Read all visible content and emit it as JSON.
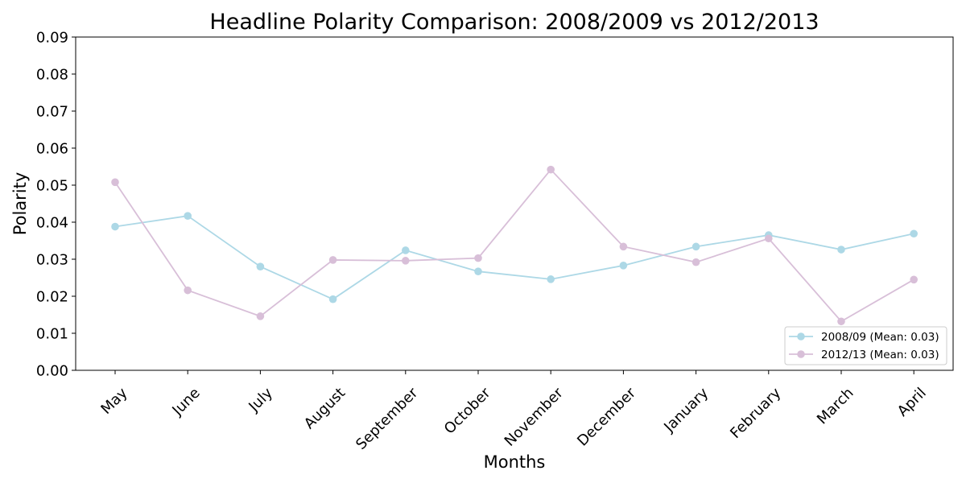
{
  "chart_data": {
    "type": "line",
    "title": "Headline Polarity Comparison: 2008/2009 vs 2012/2013",
    "xlabel": "Months",
    "ylabel": "Polarity",
    "categories": [
      "May",
      "June",
      "July",
      "August",
      "September",
      "October",
      "November",
      "December",
      "January",
      "February",
      "March",
      "April"
    ],
    "ylim": [
      0,
      0.09
    ],
    "yticks": [
      "0.00",
      "0.01",
      "0.02",
      "0.03",
      "0.04",
      "0.05",
      "0.06",
      "0.07",
      "0.08",
      "0.09"
    ],
    "grid": false,
    "legend_position": "lower-right",
    "series": [
      {
        "name": "2008/09 (Mean: 0.03)",
        "color": "#add8e6",
        "values": [
          0.0388,
          0.0417,
          0.028,
          0.0192,
          0.0324,
          0.0267,
          0.0246,
          0.0283,
          0.0334,
          0.0365,
          0.0326,
          0.0369
        ]
      },
      {
        "name": "2012/13 (Mean: 0.03)",
        "color": "#d8bfd8",
        "values": [
          0.0508,
          0.0216,
          0.0146,
          0.0298,
          0.0296,
          0.0303,
          0.0542,
          0.0334,
          0.0292,
          0.0356,
          0.0132,
          0.0245
        ]
      }
    ]
  }
}
